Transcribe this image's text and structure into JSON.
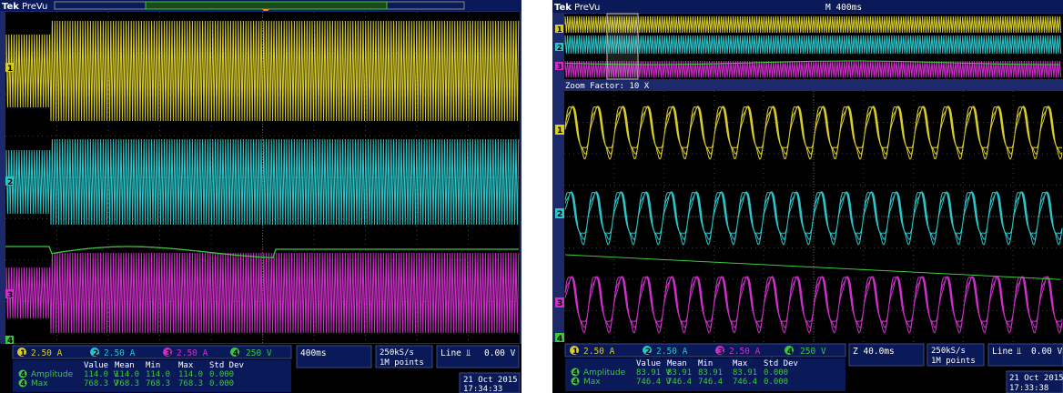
{
  "colors": {
    "ch1": "#d8cc2c",
    "ch2": "#2cc4c8",
    "ch3": "#cc30c8",
    "ch4": "#3cc83c",
    "frame": "#1c2a6c",
    "bar": "#0a1a58",
    "grid": "#4a4a4a"
  },
  "left": {
    "brand": "Tek",
    "mode": "PreVu",
    "channels": [
      {
        "num": "1",
        "scale": "2.50 A"
      },
      {
        "num": "2",
        "scale": "2.50 A"
      },
      {
        "num": "3",
        "scale": "2.50 A"
      },
      {
        "num": "4",
        "scale": "250 V"
      }
    ],
    "timebase": "400ms",
    "sample_rate": "250kS/s",
    "record_length": "1M points",
    "trigger": "Line",
    "trigger_slope": "⫫",
    "trigger_level": "0.00 V",
    "meas_headers": [
      "Value",
      "Mean",
      "Min",
      "Max",
      "Std Dev"
    ],
    "measurements": [
      {
        "ch": "4",
        "name": "Amplitude",
        "values": [
          "114.0 V",
          "114.0",
          "114.0",
          "114.0",
          "0.000"
        ]
      },
      {
        "ch": "4",
        "name": "Max",
        "values": [
          "768.3 V",
          "768.3",
          "768.3",
          "768.3",
          "0.000"
        ]
      }
    ],
    "date": "21 Oct  2015",
    "time": "17:34:33",
    "ground_markers": [
      "1",
      "2",
      "3",
      "4"
    ]
  },
  "right": {
    "brand": "Tek",
    "mode": "PreVu",
    "main_timebase": "M 400ms",
    "zoom_factor": "Zoom Factor: 10 X",
    "channels": [
      {
        "num": "1",
        "scale": "2.50 A"
      },
      {
        "num": "2",
        "scale": "2.50 A"
      },
      {
        "num": "3",
        "scale": "2.50 A"
      },
      {
        "num": "4",
        "scale": "250 V"
      }
    ],
    "timebase": "Z 40.0ms",
    "sample_rate": "250kS/s",
    "record_length": "1M points",
    "trigger": "Line",
    "trigger_slope": "⫫",
    "trigger_level": "0.00 V",
    "meas_headers": [
      "Value",
      "Mean",
      "Min",
      "Max",
      "Std Dev"
    ],
    "measurements": [
      {
        "ch": "4",
        "name": "Amplitude",
        "values": [
          "83.91 V",
          "83.91",
          "83.91",
          "83.91",
          "0.000"
        ]
      },
      {
        "ch": "4",
        "name": "Max",
        "values": [
          "746.4 V",
          "746.4",
          "746.4",
          "746.4",
          "0.000"
        ]
      }
    ],
    "date": "21 Oct  2015",
    "time": "17:33:38",
    "ground_markers": [
      "1",
      "2",
      "3",
      "4"
    ]
  }
}
